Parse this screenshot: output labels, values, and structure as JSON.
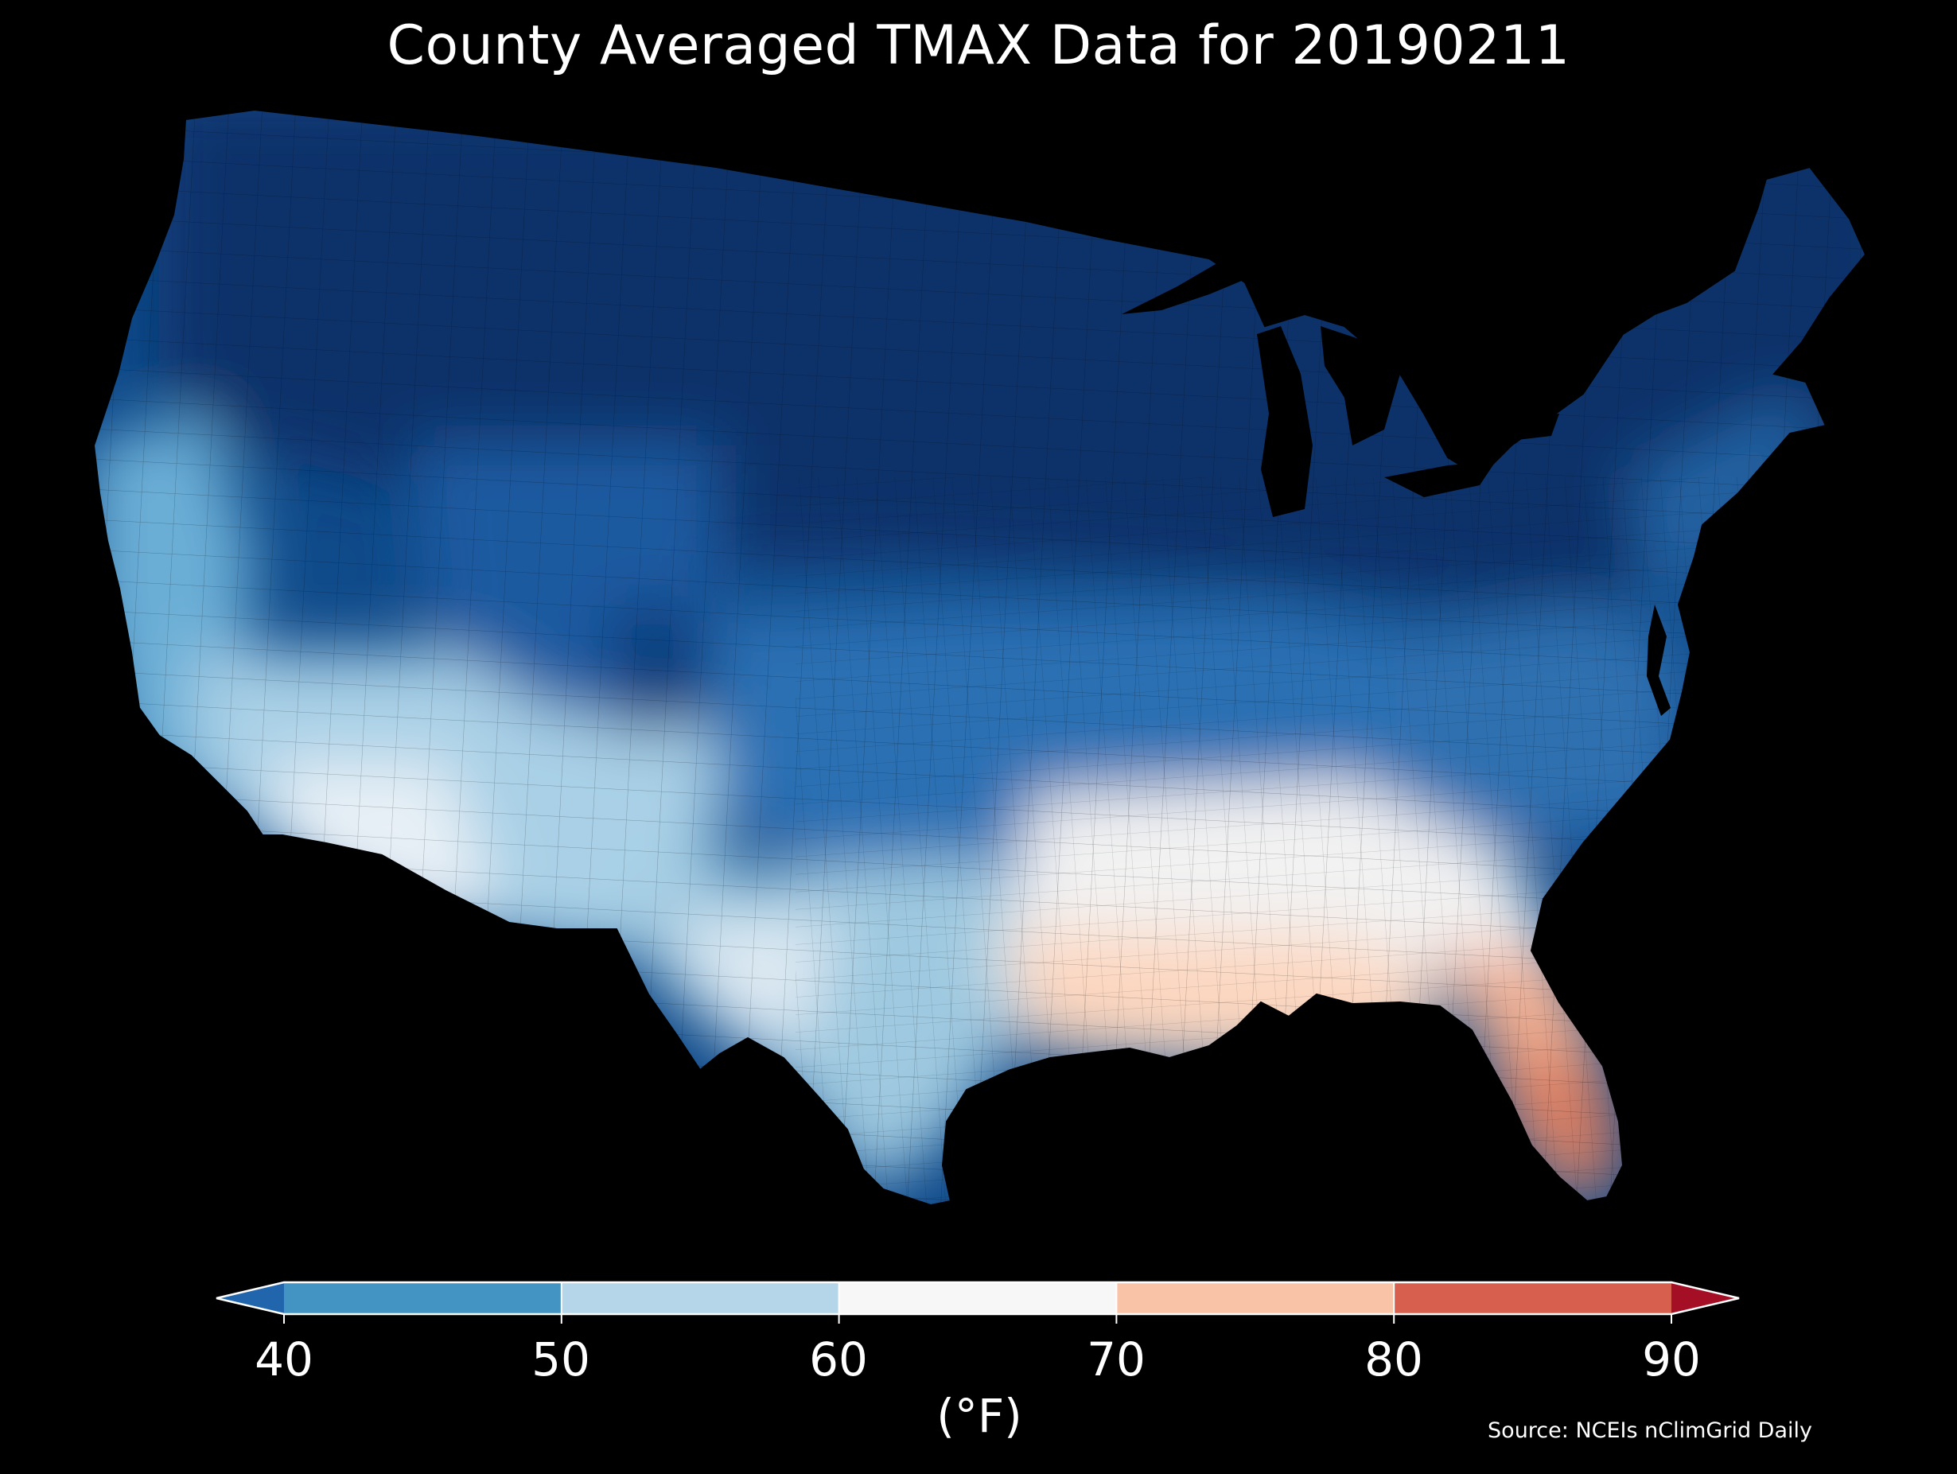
{
  "title": "County Averaged TMAX Data for 20190211",
  "source": "Source: NCEIs nClimGrid Daily",
  "colorbar": {
    "unit_label": "(°F)",
    "ticks": [
      "40",
      "50",
      "60",
      "70",
      "80",
      "90"
    ],
    "bins": [
      {
        "from": 40,
        "to": 50,
        "color": "#4393c3"
      },
      {
        "from": 50,
        "to": 60,
        "color": "#b4d6e8"
      },
      {
        "from": 60,
        "to": 70,
        "color": "#f7f7f7"
      },
      {
        "from": 70,
        "to": 80,
        "color": "#f9c3a8"
      },
      {
        "from": 80,
        "to": 90,
        "color": "#d6604d"
      }
    ],
    "under_color": "#2166ac",
    "over_color": "#a50f26",
    "extend": "both"
  },
  "map": {
    "region": "Contiguous United States",
    "unit": "county",
    "background_color": "#000000",
    "palette": {
      "very_cold": "#08306b",
      "cold": "#0f4a8a",
      "cool": "#2b6fb3",
      "mild_cool": "#4b97c9",
      "light": "#9ac8e2",
      "pale": "#d2e5f0",
      "neutral": "#f2f2f2",
      "warm": "#fcd7c0",
      "warmer": "#f4a582",
      "hot": "#e07b5c"
    }
  }
}
